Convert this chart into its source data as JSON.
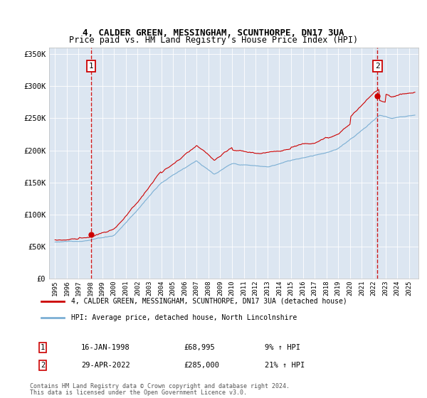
{
  "title1": "4, CALDER GREEN, MESSINGHAM, SCUNTHORPE, DN17 3UA",
  "title2": "Price paid vs. HM Land Registry's House Price Index (HPI)",
  "legend_line1": "4, CALDER GREEN, MESSINGHAM, SCUNTHORPE, DN17 3UA (detached house)",
  "legend_line2": "HPI: Average price, detached house, North Lincolnshire",
  "annotation1_label": "1",
  "annotation1_date": "16-JAN-1998",
  "annotation1_price": "£68,995",
  "annotation1_hpi": "9% ↑ HPI",
  "annotation2_label": "2",
  "annotation2_date": "29-APR-2022",
  "annotation2_price": "£285,000",
  "annotation2_hpi": "21% ↑ HPI",
  "footnote1": "Contains HM Land Registry data © Crown copyright and database right 2024.",
  "footnote2": "This data is licensed under the Open Government Licence v3.0.",
  "property_color": "#cc0000",
  "hpi_color": "#7bafd4",
  "background_color": "#dce6f1",
  "ylim_min": 0,
  "ylim_max": 360000,
  "sale1_year": 1998.04,
  "sale1_price": 68995,
  "sale2_year": 2022.33,
  "sale2_price": 285000,
  "yticks": [
    0,
    50000,
    100000,
    150000,
    200000,
    250000,
    300000,
    350000
  ],
  "ytick_labels": [
    "£0",
    "£50K",
    "£100K",
    "£150K",
    "£200K",
    "£250K",
    "£300K",
    "£350K"
  ]
}
